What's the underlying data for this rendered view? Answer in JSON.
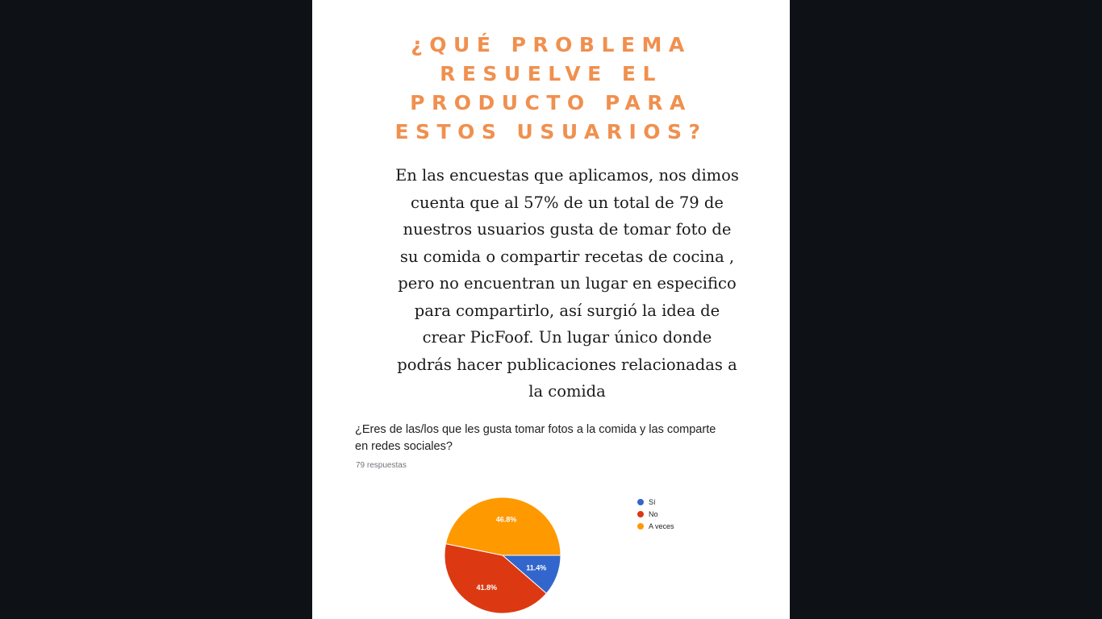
{
  "heading": {
    "lines": [
      "¿QUÉ PROBLEMA",
      "RESUELVE EL",
      "PRODUCTO PARA",
      "ESTOS USUARIOS?"
    ]
  },
  "body": {
    "lines": [
      "En las encuestas que aplicamos, nos dimos",
      "cuenta que al 57% de un total de 79 de",
      "nuestros usuarios gusta de tomar foto de",
      "su comida o compartir recetas de cocina ,",
      "pero no encuentran un lugar en especifico",
      "para compartirlo, así surgió la idea de",
      "crear PicFoof. Un lugar único donde",
      "podrás hacer publicaciones relacionadas a",
      "la comida"
    ]
  },
  "survey": {
    "question_lines": [
      "¿Eres de las/los que les gusta tomar fotos a la comida y las comparte",
      "en redes sociales?"
    ],
    "responses": "79 respuestas"
  },
  "chart_data": {
    "type": "pie",
    "title": "¿Eres de las/los que les gusta tomar fotos a la comida y las comparte en redes sociales?",
    "subtitle": "79 respuestas",
    "legend_position": "right",
    "categories": [
      "Sí",
      "No",
      "A veces"
    ],
    "values": [
      11.4,
      41.8,
      46.8
    ],
    "labels": [
      "11.4%",
      "41.8%",
      "46.8%"
    ],
    "colors": [
      "#3366cc",
      "#dc3912",
      "#ff9900"
    ]
  }
}
